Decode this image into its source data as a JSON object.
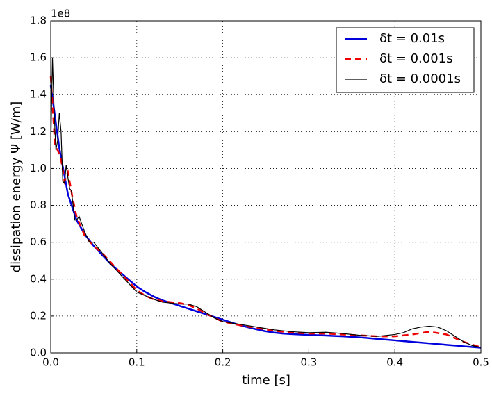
{
  "chart_data": {
    "type": "line",
    "xlabel": "time [s]",
    "ylabel": "dissipation energy  Ψ [W/m]",
    "y_offset_label": "1e8",
    "xlim": [
      0,
      0.5
    ],
    "ylim": [
      0,
      1.8
    ],
    "xticks": [
      {
        "value": 0,
        "label": "0.0"
      },
      0.1,
      0.2,
      0.3,
      0.4,
      0.5
    ],
    "yticks": [
      {
        "value": 0,
        "label": "0.0"
      },
      0.2,
      0.4,
      0.6,
      0.8,
      {
        "value": 1,
        "label": "1.0"
      },
      1.2,
      1.4,
      1.6,
      1.8
    ],
    "grid": true,
    "legend_position": "upper-right",
    "series": [
      {
        "name": "δt = 0.01s",
        "color": "#0000dd",
        "style": "solid",
        "width": 2.5,
        "x": [
          0,
          0.01,
          0.02,
          0.03,
          0.04,
          0.05,
          0.06,
          0.07,
          0.08,
          0.09,
          0.1,
          0.11,
          0.12,
          0.13,
          0.14,
          0.15,
          0.16,
          0.17,
          0.18,
          0.19,
          0.2,
          0.21,
          0.22,
          0.23,
          0.24,
          0.25,
          0.26,
          0.27,
          0.28,
          0.29,
          0.3,
          0.31,
          0.32,
          0.33,
          0.34,
          0.35,
          0.36,
          0.37,
          0.38,
          0.39,
          0.4,
          0.41,
          0.42,
          0.43,
          0.44,
          0.45,
          0.46,
          0.47,
          0.48,
          0.49,
          0.5
        ],
        "values": [
          1.45,
          1.11,
          0.86,
          0.72,
          0.64,
          0.58,
          0.53,
          0.48,
          0.44,
          0.4,
          0.36,
          0.33,
          0.305,
          0.285,
          0.27,
          0.255,
          0.24,
          0.225,
          0.21,
          0.195,
          0.18,
          0.165,
          0.15,
          0.138,
          0.127,
          0.117,
          0.11,
          0.105,
          0.102,
          0.1,
          0.098,
          0.096,
          0.094,
          0.092,
          0.09,
          0.087,
          0.084,
          0.08,
          0.076,
          0.072,
          0.068,
          0.064,
          0.06,
          0.056,
          0.052,
          0.048,
          0.044,
          0.04,
          0.036,
          0.032,
          0.028
        ]
      },
      {
        "name": "δt = 0.001s",
        "color": "#ee0000",
        "style": "dashed",
        "width": 2.5,
        "x": [
          0,
          0.002,
          0.005,
          0.008,
          0.012,
          0.016,
          0.02,
          0.025,
          0.03,
          0.04,
          0.05,
          0.06,
          0.07,
          0.08,
          0.09,
          0.1,
          0.11,
          0.12,
          0.13,
          0.14,
          0.15,
          0.16,
          0.17,
          0.18,
          0.19,
          0.2,
          0.22,
          0.24,
          0.26,
          0.28,
          0.3,
          0.32,
          0.34,
          0.36,
          0.38,
          0.4,
          0.42,
          0.44,
          0.46,
          0.48,
          0.5
        ],
        "values": [
          1.5,
          1.35,
          1.12,
          1.1,
          1.05,
          0.93,
          0.98,
          0.85,
          0.74,
          0.63,
          0.58,
          0.54,
          0.49,
          0.44,
          0.39,
          0.34,
          0.31,
          0.29,
          0.28,
          0.275,
          0.27,
          0.26,
          0.24,
          0.215,
          0.19,
          0.17,
          0.15,
          0.135,
          0.12,
          0.11,
          0.105,
          0.105,
          0.1,
          0.095,
          0.09,
          0.09,
          0.1,
          0.115,
          0.1,
          0.06,
          0.03
        ]
      },
      {
        "name": "δt = 0.0001s",
        "color": "#000000",
        "style": "solid",
        "width": 1.2,
        "x": [
          0,
          0.002,
          0.004,
          0.006,
          0.008,
          0.01,
          0.012,
          0.014,
          0.016,
          0.018,
          0.02,
          0.022,
          0.024,
          0.026,
          0.028,
          0.03,
          0.033,
          0.036,
          0.04,
          0.045,
          0.05,
          0.055,
          0.06,
          0.07,
          0.08,
          0.09,
          0.1,
          0.11,
          0.12,
          0.13,
          0.14,
          0.15,
          0.16,
          0.17,
          0.18,
          0.19,
          0.2,
          0.22,
          0.24,
          0.26,
          0.28,
          0.3,
          0.32,
          0.34,
          0.36,
          0.38,
          0.4,
          0.41,
          0.42,
          0.43,
          0.44,
          0.45,
          0.46,
          0.47,
          0.48,
          0.49,
          0.5
        ],
        "values": [
          1.1,
          1.6,
          1.3,
          1.1,
          1.15,
          1.3,
          1.2,
          0.93,
          0.92,
          1.02,
          0.95,
          0.89,
          0.88,
          0.8,
          0.72,
          0.72,
          0.74,
          0.7,
          0.65,
          0.6,
          0.6,
          0.57,
          0.54,
          0.48,
          0.43,
          0.38,
          0.33,
          0.31,
          0.29,
          0.275,
          0.27,
          0.265,
          0.265,
          0.25,
          0.22,
          0.19,
          0.17,
          0.155,
          0.14,
          0.125,
          0.115,
          0.11,
          0.112,
          0.105,
          0.095,
          0.09,
          0.1,
          0.11,
          0.13,
          0.14,
          0.145,
          0.14,
          0.12,
          0.09,
          0.06,
          0.04,
          0.03
        ]
      }
    ]
  }
}
